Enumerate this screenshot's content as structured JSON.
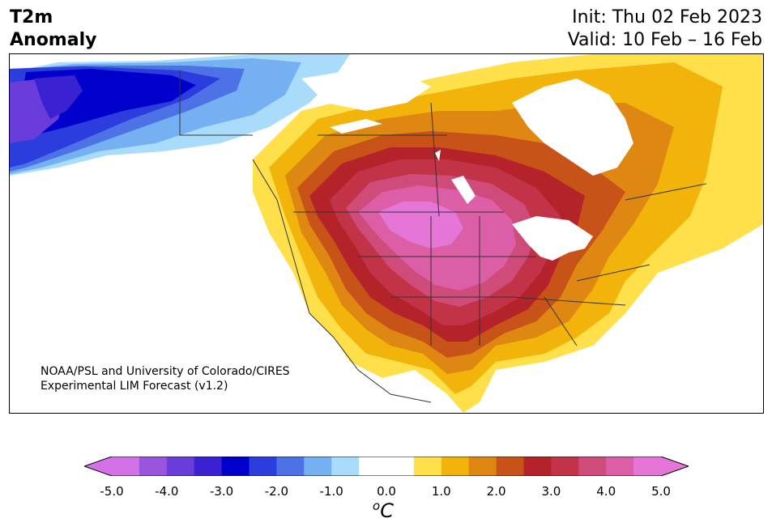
{
  "header": {
    "variable": "T2m",
    "type": "Anomaly",
    "init": "Init: Thu 02 Feb 2023",
    "valid": "Valid: 10 Feb – 16 Feb"
  },
  "credit": {
    "line1": "NOAA/PSL and University of Colorado/CIRES",
    "line2": "Experimental LIM Forecast (v1.2)"
  },
  "colorbar": {
    "unit_base": "C",
    "unit_sup": "o",
    "bins": [
      {
        "min": -5.0,
        "max": -4.5,
        "color": "#d272e6"
      },
      {
        "min": -4.5,
        "max": -4.0,
        "color": "#9a55de"
      },
      {
        "min": -4.0,
        "max": -3.5,
        "color": "#6a3cd9"
      },
      {
        "min": -3.5,
        "max": -3.0,
        "color": "#3a22d2"
      },
      {
        "min": -3.0,
        "max": -2.5,
        "color": "#0000cc"
      },
      {
        "min": -2.5,
        "max": -2.0,
        "color": "#2b3ddc"
      },
      {
        "min": -2.0,
        "max": -1.5,
        "color": "#4d72e6"
      },
      {
        "min": -1.5,
        "max": -1.0,
        "color": "#75b0f2"
      },
      {
        "min": -1.0,
        "max": -0.5,
        "color": "#a9dcfb"
      },
      {
        "min": -0.5,
        "max": 0.0,
        "color": "#ffffff"
      },
      {
        "min": 0.0,
        "max": 0.5,
        "color": "#ffffff"
      },
      {
        "min": 0.5,
        "max": 1.0,
        "color": "#ffe04a"
      },
      {
        "min": 1.0,
        "max": 1.5,
        "color": "#f2b30a"
      },
      {
        "min": 1.5,
        "max": 2.0,
        "color": "#de8712"
      },
      {
        "min": 2.0,
        "max": 2.5,
        "color": "#c85318"
      },
      {
        "min": 2.5,
        "max": 3.0,
        "color": "#b5232a"
      },
      {
        "min": 3.0,
        "max": 3.5,
        "color": "#c23348"
      },
      {
        "min": 3.5,
        "max": 4.0,
        "color": "#cf4b7a"
      },
      {
        "min": 4.0,
        "max": 4.5,
        "color": "#db5ea6"
      },
      {
        "min": 4.5,
        "max": 5.0,
        "color": "#e575d6"
      }
    ],
    "under_color": "#d272e6",
    "over_color": "#e575d6",
    "ticks": [
      "-5.0",
      "-4.0",
      "-3.0",
      "-2.0",
      "-1.0",
      "0.0",
      "1.0",
      "2.0",
      "3.0",
      "4.0",
      "5.0"
    ],
    "tick_values": [
      -5,
      -4,
      -3,
      -2,
      -1,
      0,
      1,
      2,
      3,
      4,
      5
    ]
  },
  "map": {
    "region": "North America",
    "land_color_neutral": "#ffffff",
    "border_color": "#333333"
  }
}
